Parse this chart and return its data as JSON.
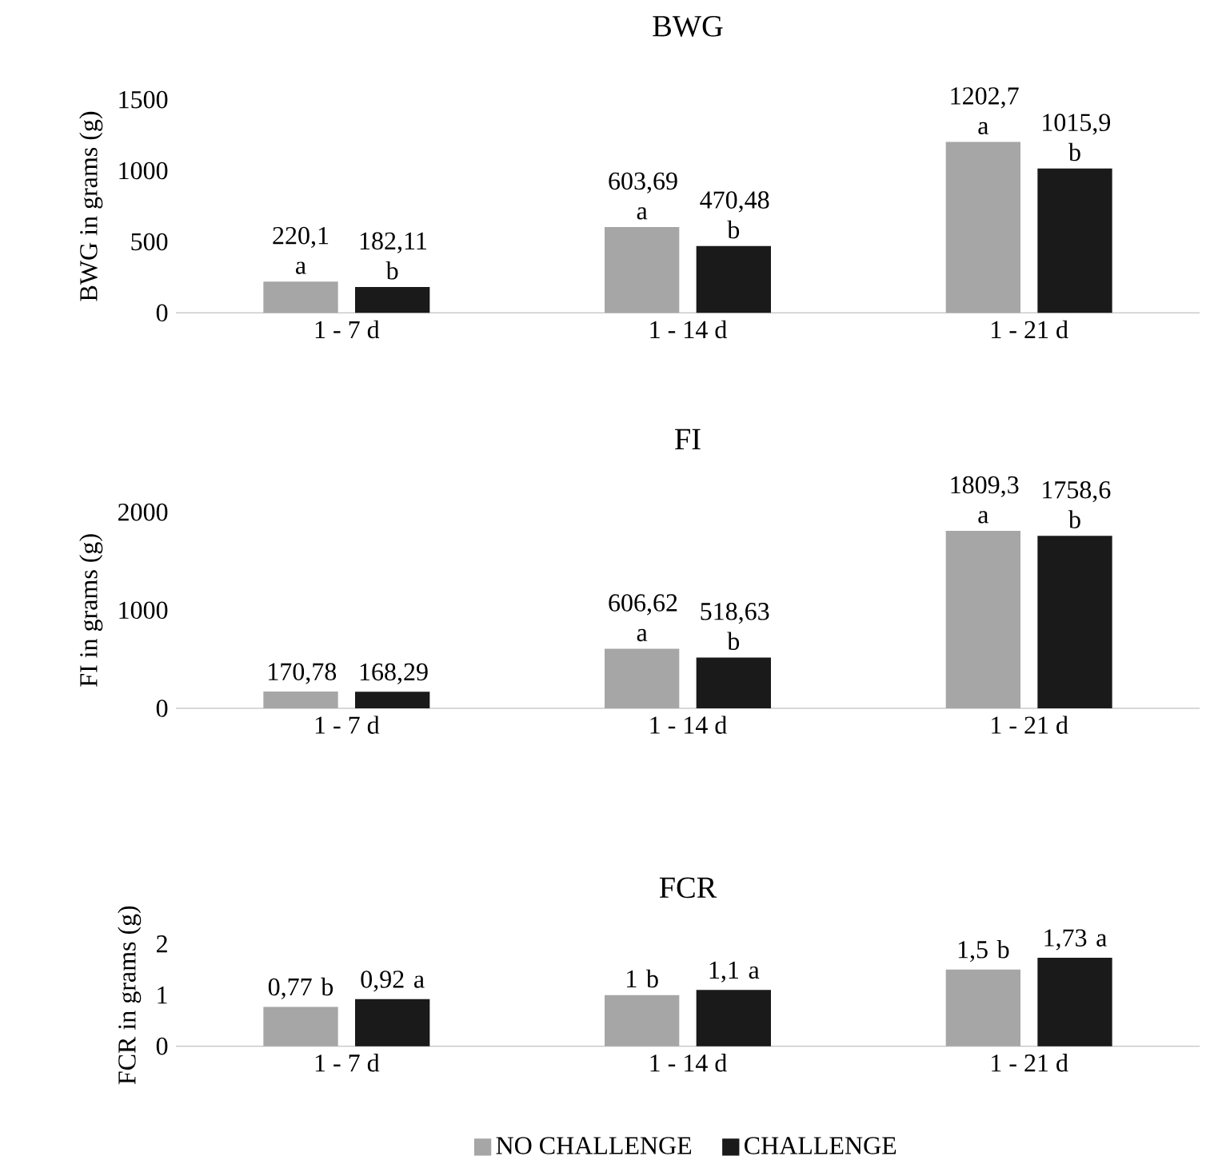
{
  "chart_data": [
    {
      "type": "bar",
      "title": "BWG",
      "ylabel": "BWG in grams (g)",
      "categories": [
        "1 - 7 d",
        "1 - 14 d",
        "1 - 21 d"
      ],
      "ylim": [
        0,
        1500
      ],
      "yticks": [
        0,
        500,
        1000,
        1500
      ],
      "series": [
        {
          "color": "#a6a6a6",
          "values": [
            220.1,
            603.69,
            1202.7
          ],
          "value_labels": [
            "220,1 a",
            "603,69 a",
            "1202,7 a"
          ]
        },
        {
          "color": "#1a1a1a",
          "values": [
            182.11,
            470.48,
            1015.9
          ],
          "value_labels": [
            "182,11 b",
            "470,48 b",
            "1015,9 b"
          ]
        }
      ]
    },
    {
      "type": "bar",
      "title": "FI",
      "ylabel": "FI in grams (g)",
      "categories": [
        "1 - 7 d",
        "1 - 14 d",
        "1 - 21 d"
      ],
      "ylim": [
        0,
        2000
      ],
      "yticks": [
        0,
        1000,
        2000
      ],
      "series": [
        {
          "color": "#a6a6a6",
          "values": [
            170.78,
            606.62,
            1809.3
          ],
          "value_labels": [
            "170,78",
            "606,62 a",
            "1809,3 a"
          ]
        },
        {
          "color": "#1a1a1a",
          "values": [
            168.29,
            518.63,
            1758.6
          ],
          "value_labels": [
            "168,29",
            "518,63 b",
            "1758,6 b"
          ]
        }
      ]
    },
    {
      "type": "bar",
      "title": "FCR",
      "ylabel": "FCR in grams (g)",
      "categories": [
        "1 - 7 d",
        "1 - 14 d",
        "1 - 21 d"
      ],
      "ylim": [
        0,
        2
      ],
      "yticks": [
        0,
        1,
        2
      ],
      "legend": "bottom",
      "series": [
        {
          "name": "NO CHALLENGE",
          "color": "#a6a6a6",
          "values": [
            0.77,
            1,
            1.5
          ],
          "value_labels": [
            "0,77 b",
            "1 b",
            "1,5 b"
          ]
        },
        {
          "name": "CHALLENGE",
          "color": "#1a1a1a",
          "values": [
            0.92,
            1.1,
            1.73
          ],
          "value_labels": [
            "0,92 a",
            "1,1 a",
            "1,73 a"
          ]
        }
      ]
    }
  ]
}
